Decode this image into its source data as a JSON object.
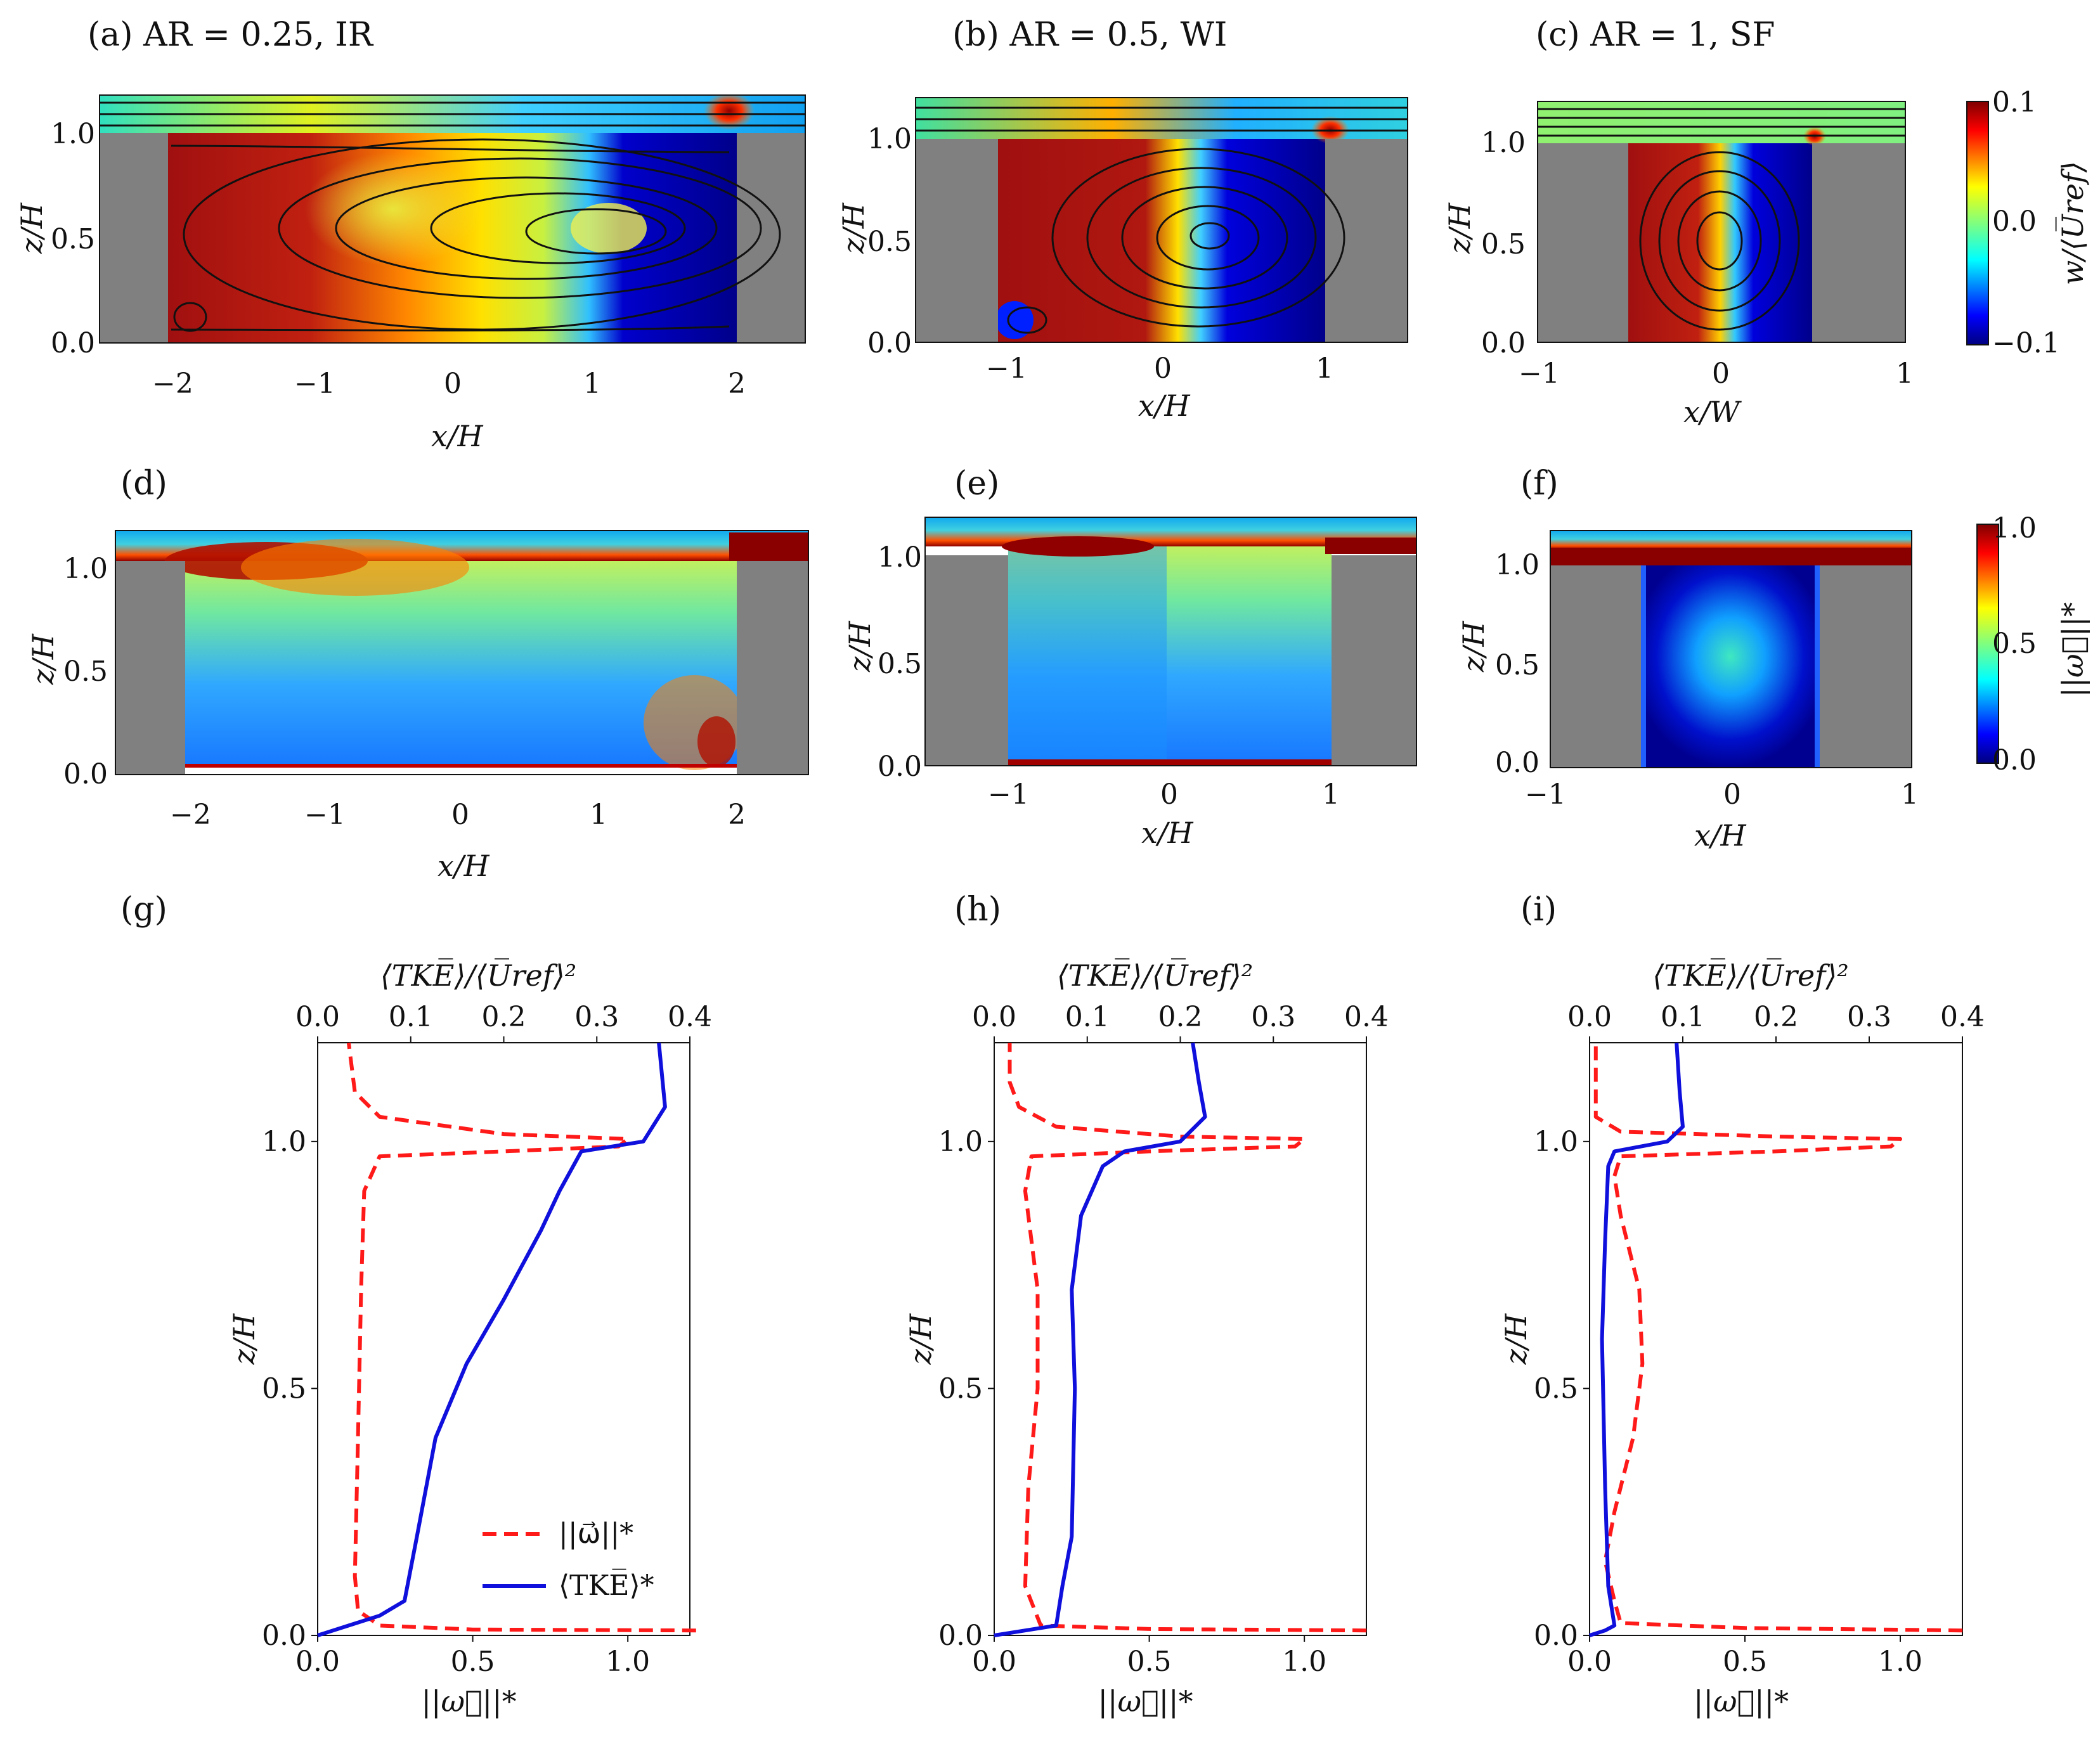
{
  "figure": {
    "colors": {
      "cmap": [
        "#00007f",
        "#0000ff",
        "#007fff",
        "#00ffff",
        "#7fff7f",
        "#ffff00",
        "#ff7f00",
        "#ff0000",
        "#7f0000"
      ],
      "wall": "#808080",
      "omega": "#ff1a1a",
      "tke": "#1010dd",
      "streamline": "#111111"
    },
    "colorbars": [
      {
        "label": "w/⟨U̅ref⟩",
        "ticks": [
          "0.1",
          "0.0",
          "−0.1"
        ]
      },
      {
        "label": "||ω⃗||*",
        "ticks": [
          "1.0",
          "0.5",
          "0.0"
        ]
      }
    ]
  },
  "chart_data": [
    {
      "type": "heatmap",
      "panel": "(a) AR = 0.25, IR",
      "field": "vertical velocity with streamlines",
      "xlabel": "x/H",
      "ylabel": "z/H",
      "xlim": [
        -2.5,
        2.5
      ],
      "ylim": [
        0.0,
        1.2
      ],
      "xticks": [
        "−2",
        "−1",
        "0",
        "1",
        "2"
      ],
      "yticks": [
        "0.0",
        "0.5",
        "1.0"
      ],
      "cavity": [
        -2.0,
        2.0
      ],
      "vortex_center": [
        1.2,
        0.55
      ],
      "clim": [
        -0.1,
        0.1
      ]
    },
    {
      "type": "heatmap",
      "panel": "(b) AR = 0.5, WI",
      "field": "vertical velocity with streamlines",
      "xlabel": "x/H",
      "ylabel": "z/H",
      "xlim": [
        -1.5,
        1.5
      ],
      "ylim": [
        0.0,
        1.2
      ],
      "xticks": [
        "−1",
        "0",
        "1"
      ],
      "yticks": [
        "0.0",
        "0.5",
        "1.0"
      ],
      "cavity": [
        -1.0,
        1.0
      ],
      "vortex_center": [
        0.3,
        0.55
      ],
      "clim": [
        -0.1,
        0.1
      ]
    },
    {
      "type": "heatmap",
      "panel": "(c) AR = 1, SF",
      "field": "vertical velocity with streamlines",
      "xlabel": "x/W",
      "ylabel": "z/H",
      "xlim": [
        -1.0,
        1.0
      ],
      "ylim": [
        0.0,
        1.2
      ],
      "xticks": [
        "−1",
        "0",
        "1"
      ],
      "yticks": [
        "0.0",
        "0.5",
        "1.0"
      ],
      "cavity": [
        -0.5,
        0.5
      ],
      "vortex_center": [
        0.0,
        0.55
      ],
      "clim": [
        -0.1,
        0.1
      ]
    },
    {
      "type": "heatmap",
      "panel": "(d)",
      "field": "vorticity magnitude",
      "xlabel": "x/H",
      "ylabel": "z/H",
      "xlim": [
        -2.5,
        2.5
      ],
      "ylim": [
        0.0,
        1.2
      ],
      "xticks": [
        "−2",
        "−1",
        "0",
        "1",
        "2"
      ],
      "yticks": [
        "0.0",
        "0.5",
        "1.0"
      ],
      "cavity": [
        -2.0,
        2.0
      ],
      "clim": [
        0.0,
        1.0
      ]
    },
    {
      "type": "heatmap",
      "panel": "(e)",
      "field": "vorticity magnitude",
      "xlabel": "x/H",
      "ylabel": "z/H",
      "xlim": [
        -1.5,
        1.5
      ],
      "ylim": [
        0.0,
        1.2
      ],
      "xticks": [
        "−1",
        "0",
        "1"
      ],
      "yticks": [
        "0.0",
        "0.5",
        "1.0"
      ],
      "cavity": [
        -1.0,
        1.0
      ],
      "clim": [
        0.0,
        1.0
      ]
    },
    {
      "type": "heatmap",
      "panel": "(f)",
      "field": "vorticity magnitude",
      "xlabel": "x/H",
      "ylabel": "z/H",
      "xlim": [
        -1.0,
        1.0
      ],
      "ylim": [
        0.0,
        1.2
      ],
      "xticks": [
        "−1",
        "0",
        "1"
      ],
      "yticks": [
        "0.0",
        "0.5",
        "1.0"
      ],
      "cavity": [
        -0.5,
        0.5
      ],
      "clim": [
        0.0,
        1.0
      ]
    },
    {
      "type": "line",
      "panel": "(g)",
      "xlabel": "||ω⃗||*",
      "x2label": "⟨TKE̅⟩/⟨U̅ref⟩²",
      "ylabel": "z/H",
      "xlim": [
        0.0,
        1.2
      ],
      "x2lim": [
        0.0,
        0.4
      ],
      "ylim": [
        0.0,
        1.2
      ],
      "xticks": [
        "0.0",
        "0.5",
        "1.0"
      ],
      "x2ticks": [
        "0.0",
        "0.1",
        "0.2",
        "0.3",
        "0.4"
      ],
      "yticks": [
        "0.0",
        "0.5",
        "1.0"
      ],
      "legend": {
        "position": "lower-right",
        "entries": [
          "||ω⃗||*",
          "⟨TKE̅⟩*"
        ]
      },
      "series": [
        {
          "name": "||ω⃗||*",
          "style": "dashed",
          "points": [
            [
              1.22,
              0.01
            ],
            [
              0.5,
              0.012
            ],
            [
              0.2,
              0.02
            ],
            [
              0.13,
              0.05
            ],
            [
              0.12,
              0.12
            ],
            [
              0.13,
              0.4
            ],
            [
              0.14,
              0.7
            ],
            [
              0.15,
              0.9
            ],
            [
              0.2,
              0.97
            ],
            [
              0.6,
              0.98
            ],
            [
              0.97,
              0.99
            ],
            [
              1.0,
              1.005
            ],
            [
              0.6,
              1.015
            ],
            [
              0.2,
              1.05
            ],
            [
              0.12,
              1.1
            ],
            [
              0.1,
              1.2
            ]
          ]
        },
        {
          "name": "⟨TKE̅⟩*",
          "style": "solid",
          "points": [
            [
              0.0,
              0.0
            ],
            [
              0.1,
              0.02
            ],
            [
              0.2,
              0.04
            ],
            [
              0.28,
              0.07
            ],
            [
              0.32,
              0.2
            ],
            [
              0.38,
              0.4
            ],
            [
              0.48,
              0.55
            ],
            [
              0.6,
              0.68
            ],
            [
              0.72,
              0.82
            ],
            [
              0.78,
              0.9
            ],
            [
              0.85,
              0.98
            ],
            [
              1.05,
              1.0
            ],
            [
              1.12,
              1.07
            ],
            [
              1.1,
              1.2
            ]
          ]
        }
      ]
    },
    {
      "type": "line",
      "panel": "(h)",
      "xlabel": "||ω⃗||*",
      "x2label": "⟨TKE̅⟩/⟨U̅ref⟩²",
      "ylabel": "z/H",
      "xlim": [
        0.0,
        1.2
      ],
      "x2lim": [
        0.0,
        0.4
      ],
      "ylim": [
        0.0,
        1.2
      ],
      "xticks": [
        "0.0",
        "0.5",
        "1.0"
      ],
      "x2ticks": [
        "0.0",
        "0.1",
        "0.2",
        "0.3",
        "0.4"
      ],
      "yticks": [
        "0.0",
        "0.5",
        "1.0"
      ],
      "series": [
        {
          "name": "||ω⃗||*",
          "style": "dashed",
          "points": [
            [
              1.2,
              0.01
            ],
            [
              0.5,
              0.013
            ],
            [
              0.15,
              0.02
            ],
            [
              0.1,
              0.1
            ],
            [
              0.11,
              0.3
            ],
            [
              0.14,
              0.5
            ],
            [
              0.14,
              0.7
            ],
            [
              0.1,
              0.9
            ],
            [
              0.12,
              0.97
            ],
            [
              0.5,
              0.98
            ],
            [
              0.97,
              0.99
            ],
            [
              1.0,
              1.005
            ],
            [
              0.6,
              1.01
            ],
            [
              0.2,
              1.03
            ],
            [
              0.08,
              1.07
            ],
            [
              0.05,
              1.12
            ],
            [
              0.05,
              1.2
            ]
          ]
        },
        {
          "name": "⟨TKE̅⟩*",
          "style": "solid",
          "points": [
            [
              0.0,
              0.0
            ],
            [
              0.1,
              0.01
            ],
            [
              0.2,
              0.02
            ],
            [
              0.22,
              0.1
            ],
            [
              0.25,
              0.2
            ],
            [
              0.26,
              0.5
            ],
            [
              0.25,
              0.7
            ],
            [
              0.28,
              0.85
            ],
            [
              0.35,
              0.95
            ],
            [
              0.42,
              0.98
            ],
            [
              0.6,
              1.0
            ],
            [
              0.68,
              1.05
            ],
            [
              0.66,
              1.12
            ],
            [
              0.64,
              1.2
            ]
          ]
        }
      ]
    },
    {
      "type": "line",
      "panel": "(i)",
      "xlabel": "||ω⃗||*",
      "x2label": "⟨TKE̅⟩/⟨U̅ref⟩²",
      "ylabel": "z/H",
      "xlim": [
        0.0,
        1.2
      ],
      "x2lim": [
        0.0,
        0.4
      ],
      "ylim": [
        0.0,
        1.2
      ],
      "xticks": [
        "0.0",
        "0.5",
        "1.0"
      ],
      "x2ticks": [
        "0.0",
        "0.1",
        "0.2",
        "0.3",
        "0.4"
      ],
      "yticks": [
        "0.0",
        "0.5",
        "1.0"
      ],
      "series": [
        {
          "name": "||ω⃗||*",
          "style": "dashed",
          "points": [
            [
              1.2,
              0.01
            ],
            [
              0.5,
              0.015
            ],
            [
              0.1,
              0.025
            ],
            [
              0.08,
              0.07
            ],
            [
              0.05,
              0.15
            ],
            [
              0.08,
              0.25
            ],
            [
              0.14,
              0.4
            ],
            [
              0.17,
              0.55
            ],
            [
              0.16,
              0.7
            ],
            [
              0.1,
              0.85
            ],
            [
              0.08,
              0.93
            ],
            [
              0.1,
              0.97
            ],
            [
              0.6,
              0.98
            ],
            [
              0.97,
              0.99
            ],
            [
              1.0,
              1.005
            ],
            [
              0.6,
              1.01
            ],
            [
              0.1,
              1.02
            ],
            [
              0.02,
              1.05
            ],
            [
              0.02,
              1.2
            ]
          ]
        },
        {
          "name": "⟨TKE̅⟩*",
          "style": "solid",
          "points": [
            [
              0.0,
              0.0
            ],
            [
              0.05,
              0.01
            ],
            [
              0.08,
              0.02
            ],
            [
              0.06,
              0.1
            ],
            [
              0.05,
              0.3
            ],
            [
              0.04,
              0.6
            ],
            [
              0.05,
              0.8
            ],
            [
              0.06,
              0.95
            ],
            [
              0.08,
              0.98
            ],
            [
              0.25,
              1.0
            ],
            [
              0.3,
              1.03
            ],
            [
              0.29,
              1.1
            ],
            [
              0.28,
              1.2
            ]
          ]
        }
      ]
    }
  ]
}
